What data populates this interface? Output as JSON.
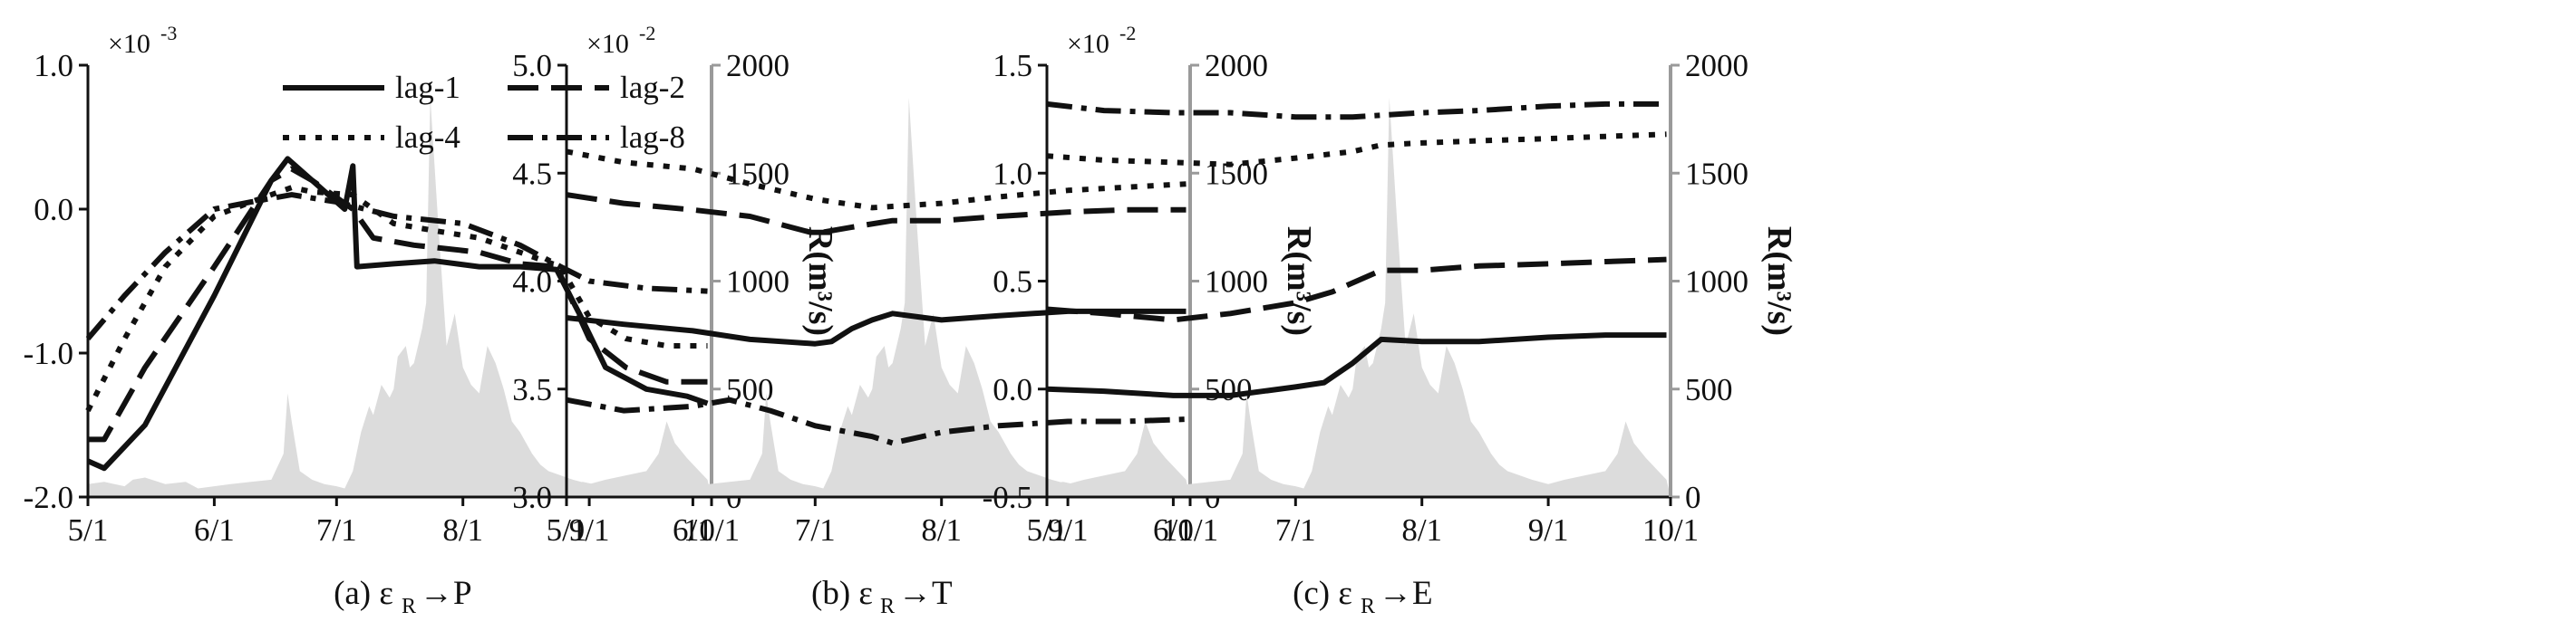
{
  "figure": {
    "x_ticks": [
      "5/1",
      "6/1",
      "7/1",
      "8/1",
      "9/1",
      "10/1"
    ],
    "right_axis_label": "R(m³/s)",
    "right_ticks": [
      "0",
      "500",
      "1000",
      "1500",
      "2000"
    ],
    "legend": [
      "lag-1",
      "lag-2",
      "lag-4",
      "lag-8"
    ],
    "colors": {
      "series": "#111111",
      "runoff": "#dcdcdc",
      "right_axis": "#9a9a9a"
    }
  },
  "chart_data": [
    {
      "type": "line",
      "caption_prefix": "(a) ε",
      "caption_sub": "R",
      "caption_suffix": "→P",
      "scale_text": "×10",
      "scale_exp": "-3",
      "ylim": [
        -2.0,
        1.0
      ],
      "y_ticks": [
        "1.0",
        "0.0",
        "-1.0",
        "-2.0"
      ],
      "y_tick_values": [
        1.0,
        0.0,
        -1.0,
        -2.0
      ],
      "xlim": [
        "5/1",
        "10/1"
      ],
      "right_ylim": [
        0,
        2000
      ],
      "legend_position": "top",
      "series": [
        {
          "name": "lag-1",
          "style": "solid",
          "x": [
            "5/1",
            "5/5",
            "5/15",
            "6/1",
            "6/15",
            "6/19",
            "6/25",
            "7/3",
            "7/5",
            "7/6",
            "7/15",
            "7/25",
            "8/5",
            "8/15",
            "8/24",
            "8/30",
            "9/5",
            "9/15",
            "9/25",
            "9/30"
          ],
          "values": [
            -1.75,
            -1.8,
            -1.5,
            -0.6,
            0.2,
            0.35,
            0.2,
            0.0,
            0.3,
            -0.4,
            -0.38,
            -0.36,
            -0.4,
            -0.4,
            -0.42,
            -0.75,
            -1.1,
            -1.25,
            -1.3,
            -1.35
          ]
        },
        {
          "name": "lag-2",
          "style": "dash",
          "x": [
            "5/1",
            "5/5",
            "5/15",
            "6/1",
            "6/15",
            "6/20",
            "6/25",
            "7/5",
            "7/10",
            "7/20",
            "8/5",
            "8/15",
            "8/24",
            "9/1",
            "9/10",
            "9/20",
            "9/30"
          ],
          "values": [
            -1.6,
            -1.6,
            -1.1,
            -0.4,
            0.2,
            0.28,
            0.2,
            0.0,
            -0.2,
            -0.25,
            -0.3,
            -0.38,
            -0.4,
            -0.9,
            -1.1,
            -1.2,
            -1.2
          ]
        },
        {
          "name": "lag-4",
          "style": "dot",
          "x": [
            "5/1",
            "5/10",
            "5/20",
            "6/1",
            "6/10",
            "6/20",
            "6/25",
            "7/5",
            "7/15",
            "7/25",
            "8/5",
            "8/15",
            "8/25",
            "9/1",
            "9/10",
            "9/20",
            "9/30"
          ],
          "values": [
            -1.4,
            -0.9,
            -0.4,
            -0.05,
            0.05,
            0.15,
            0.12,
            0.1,
            -0.1,
            -0.15,
            -0.2,
            -0.3,
            -0.4,
            -0.75,
            -0.9,
            -0.95,
            -0.95
          ]
        },
        {
          "name": "lag-8",
          "style": "dashdot",
          "x": [
            "5/1",
            "5/10",
            "5/20",
            "6/1",
            "6/10",
            "6/20",
            "7/1",
            "7/15",
            "8/1",
            "8/15",
            "8/25",
            "9/1",
            "9/15",
            "9/30"
          ],
          "values": [
            -0.9,
            -0.6,
            -0.3,
            0.0,
            0.05,
            0.1,
            0.05,
            -0.05,
            -0.1,
            -0.25,
            -0.4,
            -0.5,
            -0.55,
            -0.57
          ]
        }
      ]
    },
    {
      "type": "line",
      "caption_prefix": "(b) ε",
      "caption_sub": "R",
      "caption_suffix": "→T",
      "scale_text": "×10",
      "scale_exp": "-2",
      "ylim": [
        3.0,
        5.0
      ],
      "y_ticks": [
        "5.0",
        "4.5",
        "4.0",
        "3.5",
        "3.0"
      ],
      "y_tick_values": [
        5.0,
        4.5,
        4.0,
        3.5,
        3.0
      ],
      "xlim": [
        "5/1",
        "10/1"
      ],
      "right_ylim": [
        0,
        2000
      ],
      "series": [
        {
          "name": "lag-1",
          "style": "solid",
          "x": [
            "5/1",
            "5/15",
            "6/1",
            "6/15",
            "7/1",
            "7/5",
            "7/10",
            "7/15",
            "7/20",
            "8/1",
            "8/15",
            "9/1",
            "9/15",
            "9/30"
          ],
          "values": [
            3.83,
            3.8,
            3.77,
            3.73,
            3.71,
            3.72,
            3.78,
            3.82,
            3.85,
            3.82,
            3.84,
            3.86,
            3.86,
            3.86
          ]
        },
        {
          "name": "lag-2",
          "style": "dash",
          "x": [
            "5/1",
            "5/15",
            "6/1",
            "6/15",
            "7/1",
            "7/10",
            "7/20",
            "8/1",
            "8/15",
            "9/1",
            "9/15",
            "9/30"
          ],
          "values": [
            4.4,
            4.36,
            4.33,
            4.3,
            4.22,
            4.25,
            4.28,
            4.28,
            4.3,
            4.32,
            4.33,
            4.33
          ]
        },
        {
          "name": "lag-4",
          "style": "dot",
          "x": [
            "5/1",
            "5/15",
            "6/1",
            "6/15",
            "7/1",
            "7/15",
            "8/1",
            "8/15",
            "9/1",
            "9/30"
          ],
          "values": [
            4.6,
            4.55,
            4.52,
            4.45,
            4.38,
            4.34,
            4.36,
            4.39,
            4.42,
            4.45
          ]
        },
        {
          "name": "lag-8",
          "style": "dashdot",
          "x": [
            "5/1",
            "5/15",
            "6/1",
            "6/10",
            "6/20",
            "7/1",
            "7/15",
            "7/20",
            "8/1",
            "8/15",
            "9/1",
            "9/15",
            "9/30"
          ],
          "values": [
            3.45,
            3.4,
            3.42,
            3.45,
            3.4,
            3.33,
            3.28,
            3.25,
            3.3,
            3.33,
            3.35,
            3.35,
            3.36
          ]
        }
      ]
    },
    {
      "type": "line",
      "caption_prefix": "(c) ε",
      "caption_sub": "R",
      "caption_suffix": "→E",
      "scale_text": "×10",
      "scale_exp": "-2",
      "ylim": [
        -0.5,
        1.5
      ],
      "y_ticks": [
        "1.5",
        "1.0",
        "0.5",
        "0.0",
        "-0.5"
      ],
      "y_tick_values": [
        1.5,
        1.0,
        0.5,
        0.0,
        -0.5
      ],
      "xlim": [
        "5/1",
        "10/1"
      ],
      "right_ylim": [
        0,
        2000
      ],
      "series": [
        {
          "name": "lag-1",
          "style": "solid",
          "x": [
            "5/1",
            "5/15",
            "6/1",
            "6/15",
            "7/1",
            "7/8",
            "7/15",
            "7/22",
            "8/1",
            "8/15",
            "9/1",
            "9/15",
            "9/30"
          ],
          "values": [
            0.0,
            -0.01,
            -0.03,
            -0.03,
            0.01,
            0.03,
            0.12,
            0.23,
            0.22,
            0.22,
            0.24,
            0.25,
            0.25
          ]
        },
        {
          "name": "lag-2",
          "style": "dash",
          "x": [
            "5/1",
            "5/15",
            "6/1",
            "6/15",
            "7/1",
            "7/10",
            "7/22",
            "8/1",
            "8/15",
            "9/1",
            "9/15",
            "9/30"
          ],
          "values": [
            0.37,
            0.35,
            0.32,
            0.35,
            0.4,
            0.45,
            0.55,
            0.55,
            0.57,
            0.58,
            0.59,
            0.6
          ]
        },
        {
          "name": "lag-4",
          "style": "dot",
          "x": [
            "5/1",
            "5/15",
            "6/1",
            "6/15",
            "7/1",
            "7/15",
            "7/22",
            "8/1",
            "8/15",
            "9/1",
            "9/15",
            "9/30"
          ],
          "values": [
            1.08,
            1.06,
            1.05,
            1.04,
            1.07,
            1.1,
            1.13,
            1.14,
            1.15,
            1.16,
            1.17,
            1.18
          ]
        },
        {
          "name": "lag-8",
          "style": "dashdot",
          "x": [
            "5/1",
            "5/15",
            "6/1",
            "6/15",
            "7/1",
            "7/15",
            "8/1",
            "8/15",
            "9/1",
            "9/15",
            "9/30"
          ],
          "values": [
            1.32,
            1.29,
            1.28,
            1.28,
            1.26,
            1.26,
            1.28,
            1.29,
            1.31,
            1.32,
            1.32
          ]
        }
      ]
    }
  ],
  "runoff": {
    "x": [
      "5/1",
      "5/5",
      "5/10",
      "5/12",
      "5/15",
      "5/20",
      "5/25",
      "5/28",
      "6/1",
      "6/5",
      "6/10",
      "6/15",
      "6/18",
      "6/19",
      "6/20",
      "6/22",
      "6/25",
      "6/28",
      "7/1",
      "7/3",
      "7/5",
      "7/7",
      "7/9",
      "7/10",
      "7/12",
      "7/14",
      "7/15",
      "7/16",
      "7/18",
      "7/19",
      "7/20",
      "7/22",
      "7/23",
      "7/24",
      "7/26",
      "7/28",
      "7/30",
      "8/1",
      "8/3",
      "8/5",
      "8/7",
      "8/9",
      "8/11",
      "8/13",
      "8/15",
      "8/18",
      "8/20",
      "8/22",
      "8/25",
      "8/28",
      "9/1",
      "9/5",
      "9/10",
      "9/15",
      "9/18",
      "9/20",
      "9/22",
      "9/25",
      "9/28",
      "9/30"
    ],
    "values": [
      60,
      70,
      50,
      80,
      90,
      60,
      70,
      40,
      50,
      60,
      70,
      80,
      200,
      480,
      350,
      120,
      80,
      60,
      50,
      40,
      120,
      300,
      420,
      380,
      520,
      460,
      500,
      650,
      700,
      600,
      620,
      780,
      900,
      1850,
      1250,
      700,
      850,
      600,
      520,
      480,
      700,
      620,
      500,
      350,
      300,
      200,
      150,
      120,
      100,
      80,
      60,
      80,
      100,
      120,
      200,
      350,
      250,
      180,
      120,
      80
    ]
  }
}
